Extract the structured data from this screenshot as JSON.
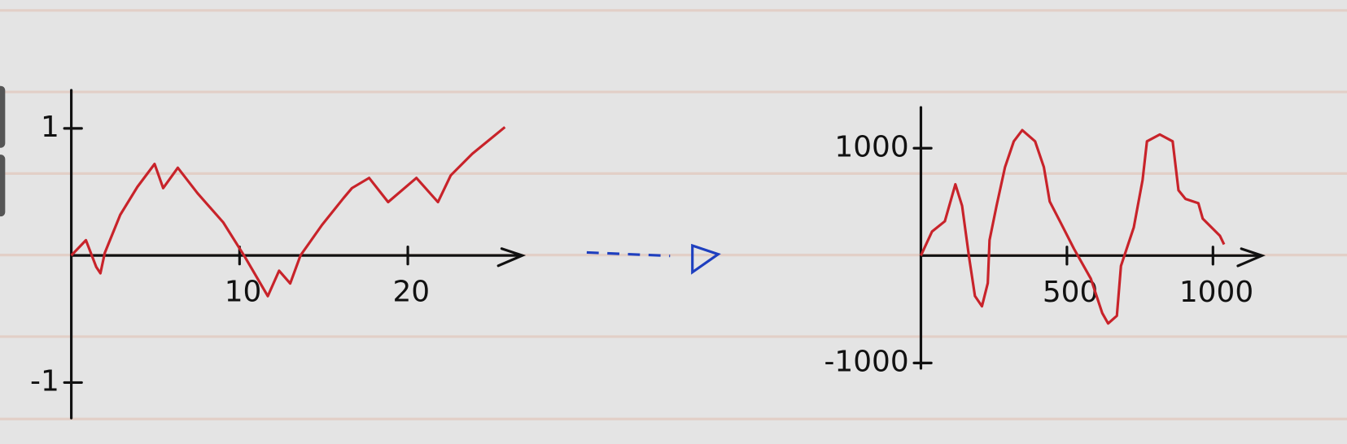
{
  "chart_data": [
    {
      "type": "line",
      "color": "#c8232a",
      "x": [
        0,
        0.87,
        1.48,
        1.73,
        1.99,
        2.91,
        3.93,
        4.95,
        5.46,
        6.33,
        7.5,
        9.03,
        10.31,
        11.68,
        12.35,
        13.01,
        13.62,
        14.9,
        16.17,
        16.68,
        17.7,
        18.83,
        20.51,
        21.79,
        22.55,
        23.83,
        25.77
      ],
      "values": [
        0,
        0.12,
        -0.09,
        -0.14,
        0.02,
        0.32,
        0.54,
        0.72,
        0.53,
        0.69,
        0.49,
        0.26,
        -0.01,
        -0.32,
        -0.12,
        -0.22,
        0,
        0.24,
        0.45,
        0.53,
        0.61,
        0.42,
        0.61,
        0.42,
        0.63,
        0.8,
        1.01
      ],
      "xlim": [
        0,
        26.6
      ],
      "ylim": [
        -1.28,
        1.3
      ],
      "xticks": [
        10,
        20
      ],
      "yticks": [
        -1,
        1
      ],
      "grid": false
    },
    {
      "type": "line",
      "color": "#c8232a",
      "x": [
        0,
        38,
        82,
        118,
        141,
        165,
        185,
        209,
        229,
        235,
        259,
        288,
        318,
        347,
        391,
        421,
        441,
        479,
        524,
        582,
        621,
        641,
        671,
        685,
        729,
        759,
        774,
        818,
        862,
        882,
        906,
        950,
        965,
        1024,
        1038
      ],
      "values": [
        0,
        224,
        320,
        664,
        464,
        -16,
        -376,
        -472,
        -256,
        144,
        464,
        824,
        1064,
        1168,
        1064,
        824,
        504,
        304,
        64,
        -216,
        -536,
        -632,
        -560,
        -96,
        264,
        704,
        1064,
        1128,
        1064,
        608,
        528,
        488,
        344,
        184,
        104
      ],
      "xlim": [
        0,
        1156
      ],
      "ylim": [
        -1050,
        1380
      ],
      "xticks": [
        500,
        1000
      ],
      "yticks": [
        -1000,
        1000
      ],
      "grid": false
    }
  ]
}
